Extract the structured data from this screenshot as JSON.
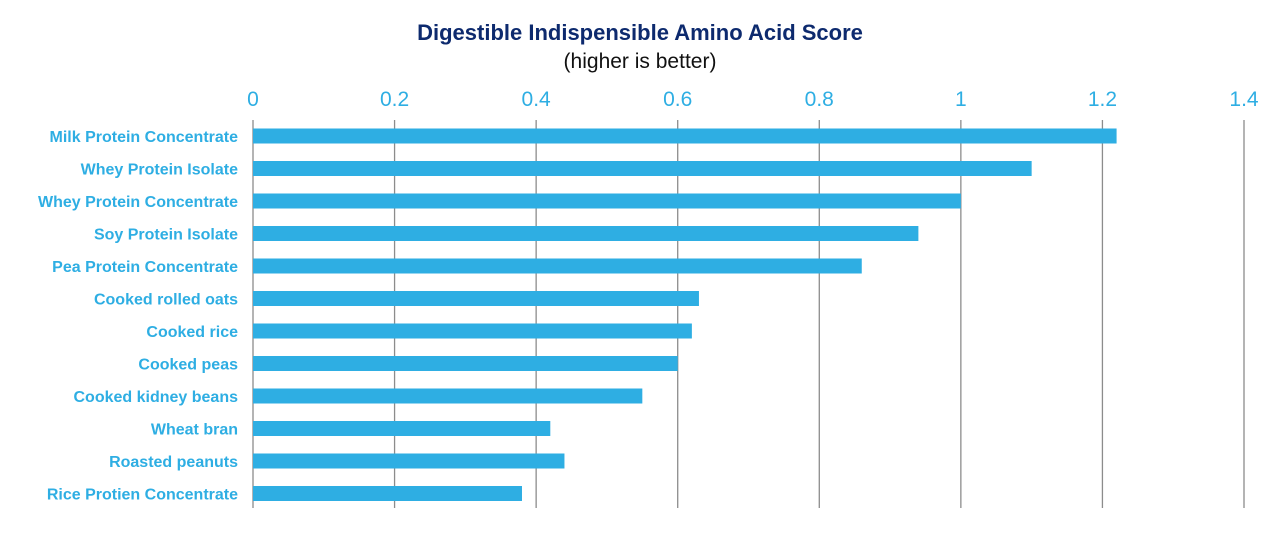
{
  "chart_data": {
    "type": "bar",
    "orientation": "horizontal",
    "title": "Digestible Indispensible Amino Acid Score",
    "subtitle": "(higher is better)",
    "xlabel": "",
    "ylabel": "",
    "xlim": [
      0,
      1.4
    ],
    "x_ticks": [
      "0",
      "0.2",
      "0.4",
      "0.6",
      "0.8",
      "1",
      "1.2",
      "1.4"
    ],
    "x_tick_values": [
      0,
      0.2,
      0.4,
      0.6,
      0.8,
      1.0,
      1.2,
      1.4
    ],
    "x_axis_position": "top",
    "grid": "vertical",
    "legend": "none",
    "categories": [
      "Milk Protein Concentrate",
      "Whey Protein Isolate",
      "Whey Protein Concentrate",
      "Soy Protein Isolate",
      "Pea Protein Concentrate",
      "Cooked rolled oats",
      "Cooked rice",
      "Cooked peas",
      "Cooked kidney beans",
      "Wheat bran",
      "Roasted peanuts",
      "Rice Protien Concentrate"
    ],
    "values": [
      1.22,
      1.1,
      1.0,
      0.94,
      0.86,
      0.63,
      0.62,
      0.6,
      0.55,
      0.42,
      0.44,
      0.38
    ],
    "colors": {
      "bar": "#2eaee3",
      "label": "#2eaee3",
      "title": "#0d2a6e",
      "grid": "#8c8c8c"
    }
  }
}
